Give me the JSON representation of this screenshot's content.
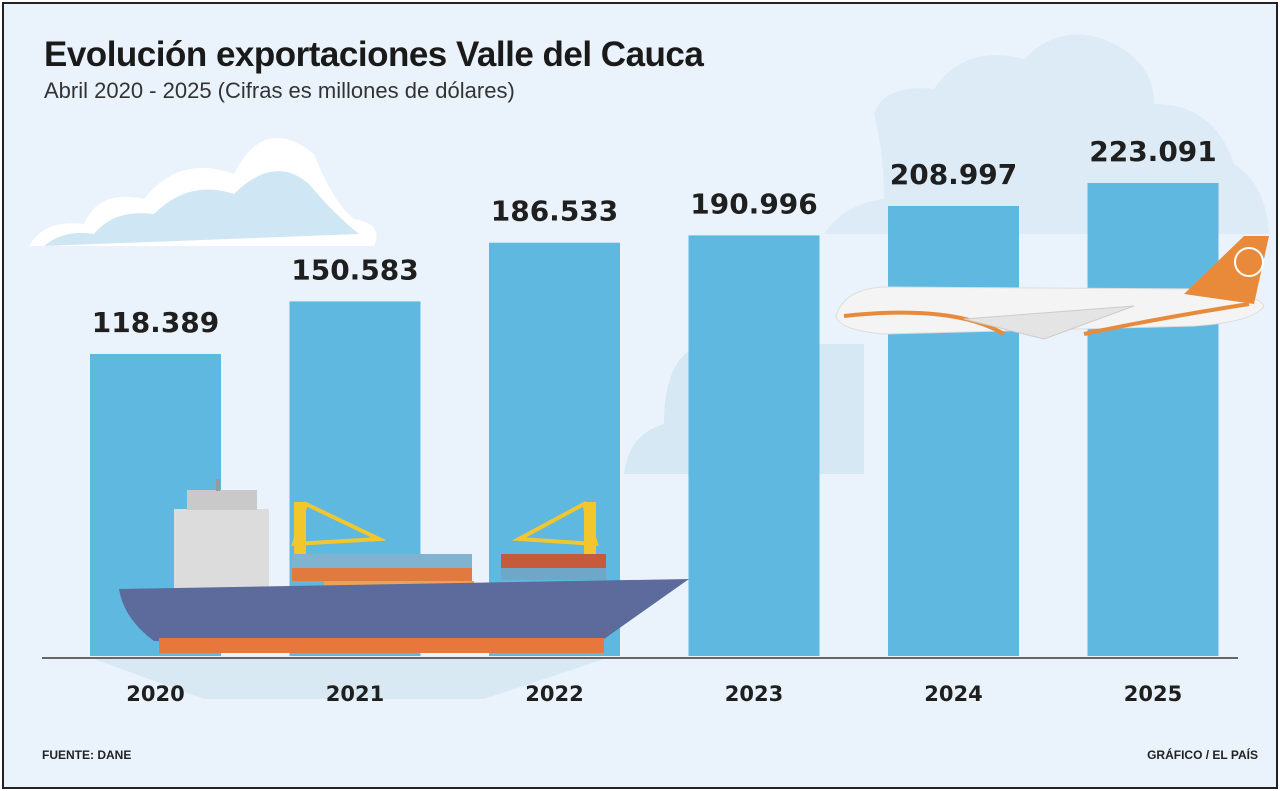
{
  "chart_data": {
    "type": "bar",
    "title": "Evolución exportaciones Valle del Cauca",
    "subtitle": "Abril 2020 - 2025 (Cifras es millones de dólares)",
    "categories": [
      "2020",
      "2021",
      "2022",
      "2023",
      "2024",
      "2025"
    ],
    "values": [
      118389,
      150583,
      186533,
      190996,
      208997,
      223091
    ],
    "value_labels": [
      "118.389",
      "150.583",
      "186.533",
      "190.996",
      "208.997",
      "223.091"
    ],
    "xlabel": "",
    "ylabel": "",
    "grid": false,
    "bar_color": "#5fb8df",
    "source": "FUENTE: DANE",
    "credit": "GRÁFICO / EL PAÍS"
  }
}
